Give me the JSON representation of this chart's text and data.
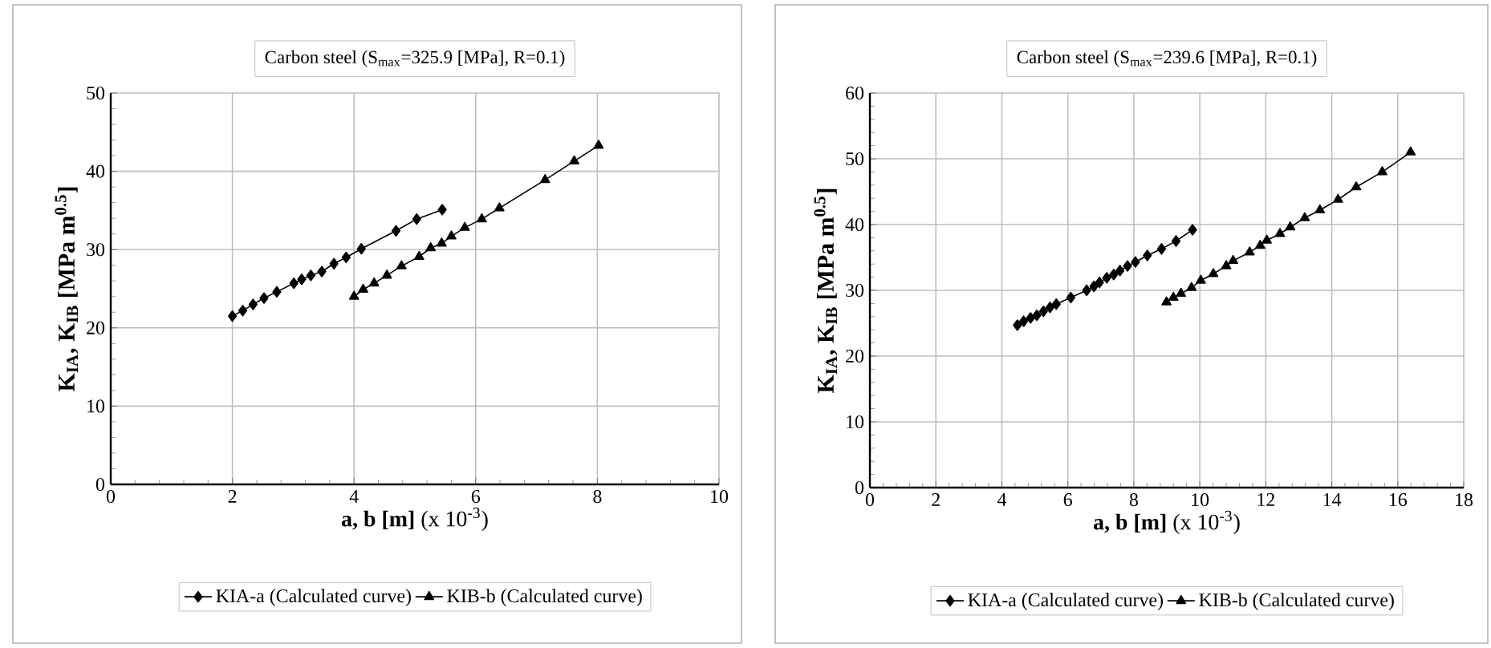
{
  "chart_data": [
    {
      "type": "line",
      "title": "Carbon steel (S$_{max}$=325.9 [MPa], R=0.1)",
      "xlabel": "**a, b [m]** (x 10$^{-3}$)",
      "ylabel": "K$_{IA}$, K$_{IB}$ [MPa m$^{0.5}$]",
      "xlim": [
        0,
        10
      ],
      "ylim": [
        0,
        50
      ],
      "xticks": [
        0,
        2,
        4,
        6,
        8,
        10
      ],
      "yticks": [
        0,
        10,
        20,
        30,
        40,
        50
      ],
      "grid": true,
      "legend": "bottom",
      "series": [
        {
          "name": "KIA-a (Calculated curve)",
          "color": "#000000",
          "marker": "diamond",
          "x": [
            2.0,
            2.17,
            2.34,
            2.52,
            2.73,
            3.01,
            3.14,
            3.29,
            3.47,
            3.67,
            3.87,
            4.12,
            4.69,
            5.03,
            5.45
          ],
          "values": [
            21.5,
            22.2,
            23.0,
            23.8,
            24.6,
            25.7,
            26.2,
            26.7,
            27.2,
            28.2,
            29.0,
            30.1,
            32.4,
            33.9,
            35.1
          ]
        },
        {
          "name": "KIB-b (Calculated curve)",
          "color": "#000000",
          "marker": "triangle",
          "x": [
            4.0,
            4.15,
            4.33,
            4.54,
            4.78,
            5.07,
            5.26,
            5.44,
            5.6,
            5.82,
            6.1,
            6.39,
            7.14,
            7.62,
            8.02
          ],
          "values": [
            24.0,
            24.9,
            25.7,
            26.7,
            27.9,
            29.1,
            30.2,
            30.8,
            31.7,
            32.8,
            33.9,
            35.3,
            38.9,
            41.3,
            43.3
          ]
        }
      ]
    },
    {
      "type": "line",
      "title": "Carbon steel (S$_{max}$=239.6 [MPa], R=0.1)",
      "xlabel": "**a, b [m]** (x 10$^{-3}$)",
      "ylabel": "K$_{IA}$, K$_{IB}$ [MPa m$^{0.5}$]",
      "xlim": [
        0,
        18
      ],
      "ylim": [
        0,
        60
      ],
      "xticks": [
        0,
        2,
        4,
        6,
        8,
        10,
        12,
        14,
        16,
        18
      ],
      "yticks": [
        0,
        10,
        20,
        30,
        40,
        50,
        60
      ],
      "grid": true,
      "legend": "bottom",
      "series": [
        {
          "name": "KIA-a (Calculated curve)",
          "color": "#000000",
          "marker": "diamond",
          "x": [
            4.47,
            4.66,
            4.87,
            5.06,
            5.26,
            5.46,
            5.65,
            6.09,
            6.57,
            6.79,
            6.96,
            7.18,
            7.39,
            7.58,
            7.81,
            8.05,
            8.41,
            8.84,
            9.28,
            9.78
          ],
          "values": [
            24.7,
            25.3,
            25.8,
            26.2,
            26.8,
            27.4,
            27.9,
            28.9,
            30.0,
            30.6,
            31.2,
            31.9,
            32.4,
            33.0,
            33.7,
            34.3,
            35.3,
            36.3,
            37.5,
            39.2
          ]
        },
        {
          "name": "KIB-b (Calculated curve)",
          "color": "#000000",
          "marker": "triangle",
          "x": [
            8.99,
            9.2,
            9.43,
            9.75,
            10.03,
            10.41,
            10.8,
            11.01,
            11.51,
            11.83,
            12.03,
            12.43,
            12.74,
            13.18,
            13.64,
            14.19,
            14.74,
            15.53,
            16.39
          ],
          "values": [
            28.2,
            28.9,
            29.5,
            30.4,
            31.5,
            32.5,
            33.7,
            34.5,
            35.8,
            36.8,
            37.6,
            38.6,
            39.6,
            41.0,
            42.2,
            43.8,
            45.7,
            48.0,
            51.0
          ]
        }
      ]
    }
  ]
}
